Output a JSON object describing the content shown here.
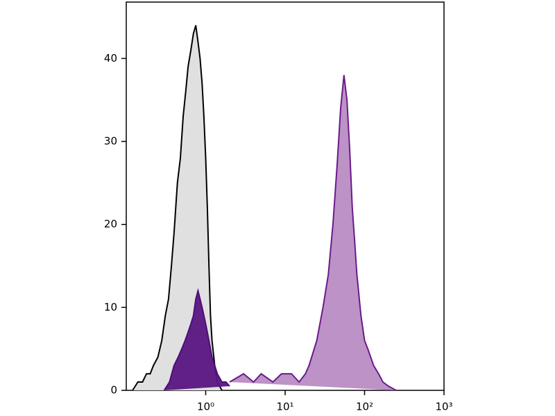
{
  "chart_data": {
    "type": "histogram-overlay",
    "xscale": "log",
    "xlim": [
      0.1,
      1000
    ],
    "ylim": [
      0,
      46.8
    ],
    "xticks": [
      {
        "value": 1,
        "label": "10⁰"
      },
      {
        "value": 10,
        "label": "10¹"
      },
      {
        "value": 100,
        "label": "10²"
      },
      {
        "value": 1000,
        "label": "10³"
      }
    ],
    "yticks": [
      0,
      10,
      20,
      30,
      40
    ],
    "series": [
      {
        "color": "#000000",
        "fill": "#dedede",
        "x": [
          0.12,
          0.14,
          0.16,
          0.18,
          0.2,
          0.22,
          0.25,
          0.28,
          0.31,
          0.34,
          0.37,
          0.4,
          0.44,
          0.48,
          0.52,
          0.56,
          0.6,
          0.65,
          0.7,
          0.75,
          0.8,
          0.85,
          0.9,
          0.95,
          1.0,
          1.05,
          1.1,
          1.15,
          1.2,
          1.3,
          1.4,
          1.6
        ],
        "values": [
          0,
          1,
          1,
          2,
          2,
          3,
          4,
          6,
          9,
          11,
          15,
          19,
          25,
          28,
          33,
          36,
          39,
          41,
          43,
          44,
          42,
          40,
          37,
          33,
          28,
          22,
          15,
          9,
          6,
          3,
          1,
          0
        ]
      },
      {
        "color": "#4b0f7a",
        "fill": "#5a1580",
        "x": [
          0.3,
          0.35,
          0.4,
          0.45,
          0.5,
          0.55,
          0.6,
          0.65,
          0.7,
          0.75,
          0.8,
          0.85,
          0.9,
          0.95,
          1.0,
          1.1,
          1.2,
          1.3,
          1.4,
          1.6,
          1.8,
          2.0
        ],
        "values": [
          0,
          1,
          3,
          4,
          5,
          6,
          7,
          8,
          9,
          11,
          12,
          11,
          10,
          9,
          8,
          6,
          4,
          3,
          2,
          1,
          1,
          0.5
        ]
      },
      {
        "color": "#6a1a8a",
        "fill": "#b98cc4",
        "x": [
          2,
          3,
          4,
          5,
          7,
          9,
          12,
          15,
          18,
          20,
          25,
          30,
          35,
          40,
          45,
          50,
          55,
          60,
          65,
          70,
          75,
          80,
          90,
          100,
          110,
          130,
          150,
          170,
          200,
          250
        ],
        "values": [
          1,
          2,
          1,
          2,
          1,
          2,
          2,
          1,
          2,
          3,
          6,
          10,
          14,
          20,
          27,
          34,
          38,
          35,
          29,
          22,
          18,
          14,
          9,
          6,
          5,
          3,
          2,
          1,
          0.5,
          0
        ]
      }
    ]
  }
}
